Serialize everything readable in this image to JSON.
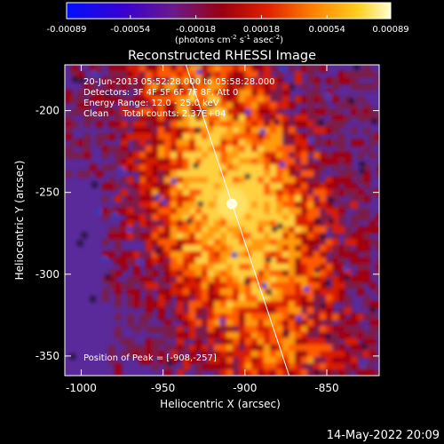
{
  "colorbar": {
    "ticks": [
      "-0.00089",
      "-0.00054",
      "-0.00018",
      "0.00018",
      "0.00054",
      "0.00089"
    ],
    "tick_values": [
      -0.00089,
      -0.00054,
      -0.00018,
      0.00018,
      0.00054,
      0.00089
    ],
    "range": [
      -0.00089,
      0.00089
    ],
    "units": "(photons cm",
    "units_exp1": "-2",
    "units_mid": " s",
    "units_exp2": "-1",
    "units_mid2": " asec",
    "units_exp3": "-2",
    "units_end": ")",
    "colors": [
      "#0010ff",
      "#3a00d0",
      "#6a1a8a",
      "#9a0010",
      "#e02000",
      "#ff8000",
      "#ffd020",
      "#ffffd0"
    ]
  },
  "title": "Reconstructed RHESSI Image",
  "info": {
    "time_range": "20-Jun-2013 05:52:28.000 to 05:58:28.000",
    "detectors": "Detectors: 3F 4F 5F 6F 7F 8F, Att 0",
    "energy": "Energy Range: 12.0 - 25.0 keV",
    "clean": "Clean     Total counts: 2.37E+04"
  },
  "peak_label": "Position of Peak = [-908,-257]",
  "x_axis": {
    "label": "Heliocentric X (arcsec)",
    "ticks": [
      "-1000",
      "-950",
      "-900",
      "-850"
    ],
    "tick_values": [
      -1000,
      -950,
      -900,
      -850
    ],
    "range": [
      -1010,
      -818
    ]
  },
  "y_axis": {
    "label": "Heliocentric Y (arcsec)",
    "ticks": [
      "-200",
      "-250",
      "-300",
      "-350"
    ],
    "tick_values": [
      -200,
      -250,
      -300,
      -350
    ],
    "range": [
      -362,
      -172
    ]
  },
  "peak": {
    "x": -908,
    "y": -257
  },
  "limb_line": {
    "x1": -936,
    "y1": -172,
    "x2": -873,
    "y2": -362
  },
  "timestamp": "14-May-2022 20:09"
}
